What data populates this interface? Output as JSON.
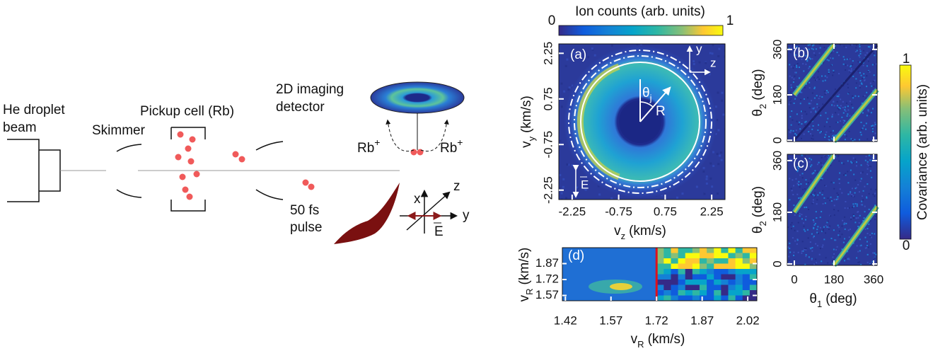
{
  "schematic": {
    "beam_label": [
      "He droplet",
      "beam"
    ],
    "skimmer": "Skimmer",
    "pickup": "Pickup cell (Rb)",
    "detector_label": [
      "2D imaging",
      "detector"
    ],
    "ion": {
      "symbol": "Rb",
      "charge": "+"
    },
    "pulse_label": [
      "50 fs",
      "pulse"
    ],
    "axes": {
      "x": "x",
      "y": "y",
      "z": "z",
      "field": "E"
    }
  },
  "panel_a": {
    "tag": "(a)",
    "colorbar": {
      "title": "Ion counts (arb. units)",
      "min": 0,
      "max": 1
    },
    "xlabel": {
      "symbol": "v",
      "sub": "z",
      "unit": "(km/s)"
    },
    "ylabel": {
      "symbol": "v",
      "sub": "y",
      "unit": "(km/s)"
    },
    "xlim": [
      -2.68,
      2.68
    ],
    "ylim": [
      -2.56,
      2.56
    ],
    "xticks": [
      -2.25,
      -0.75,
      0.75,
      2.25
    ],
    "yticks": [
      -2.25,
      -0.75,
      0.75,
      2.25
    ],
    "angle": {
      "symbol": "θ",
      "sub": "j"
    },
    "radius": "R",
    "frame": {
      "y": "y",
      "z": "z"
    },
    "field": "E"
  },
  "panel_bc": {
    "tags": [
      "(b)",
      "(c)"
    ],
    "xlabel": {
      "symbol": "θ",
      "sub": "1",
      "unit": "(deg)"
    },
    "ylabel": {
      "symbol": "θ",
      "sub": "2",
      "unit": "(deg)"
    },
    "xlim": [
      -32,
      376
    ],
    "ylim": [
      -5,
      382
    ],
    "xticks": [
      0,
      180,
      360
    ],
    "yticks": [
      0,
      180,
      360
    ],
    "colorbar": {
      "title": "Covariance (arb. units)",
      "min": 0,
      "max": 1
    }
  },
  "panel_d": {
    "tag": "(d)",
    "xlabel": {
      "symbol": "v",
      "sub": "R",
      "unit": "(km/s)"
    },
    "ylabel": {
      "symbol": "v",
      "sub": "R",
      "unit": "(km/s)"
    },
    "xlim": [
      1.41,
      2.05
    ],
    "ylim": [
      1.52,
      2.02
    ],
    "xticks": [
      1.42,
      1.57,
      1.72,
      1.87,
      2.02
    ],
    "yticks": [
      1.57,
      1.72,
      1.87
    ]
  }
}
